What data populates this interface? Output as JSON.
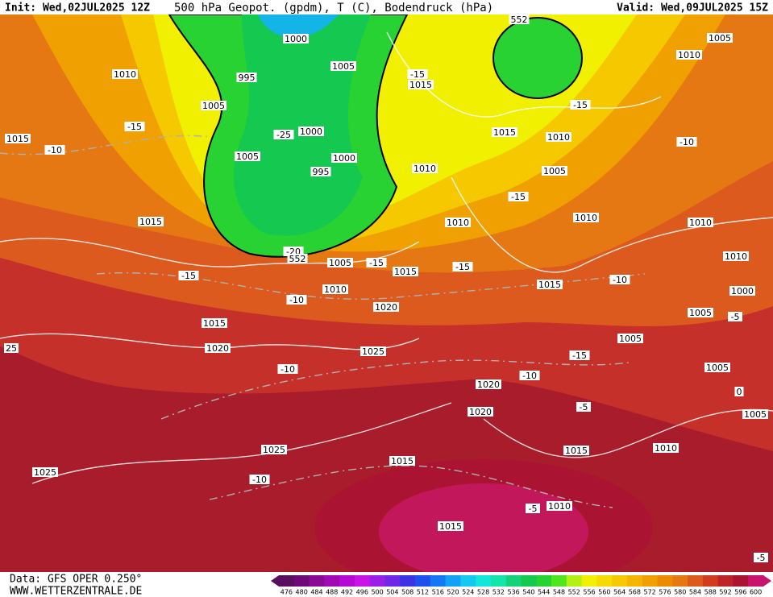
{
  "header": {
    "init": "Init: Wed,02JUL2025 12Z",
    "title": "500 hPa Geopot. (gpdm), T (C), Bodendruck (hPa)",
    "valid": "Valid: Wed,09JUL2025 15Z"
  },
  "map": {
    "labels": [
      1000,
      1005,
      995,
      1010,
      1005,
      -15,
      1015,
      -10,
      -25,
      1000,
      1005,
      995,
      1000,
      -15,
      1015,
      552,
      1005,
      1010,
      -15,
      1015,
      1010,
      -10,
      1010,
      1005,
      -15,
      1015,
      1010,
      1010,
      1010,
      -20,
      552,
      1005,
      -15,
      -15,
      1015,
      -15,
      1010,
      -10,
      1020,
      1015,
      -10,
      1010,
      1000,
      1015,
      1005,
      -5,
      1020,
      25,
      1025,
      1005,
      -15,
      -10,
      -10,
      1005,
      1020,
      0,
      -5,
      1020,
      1005,
      1025,
      1015,
      1015,
      1010,
      1025,
      -10,
      -5,
      1010,
      1015,
      -5
    ]
  },
  "legend": {
    "values": [
      476,
      480,
      484,
      488,
      492,
      496,
      500,
      504,
      508,
      512,
      516,
      520,
      524,
      528,
      532,
      536,
      540,
      544,
      548,
      552,
      556,
      560,
      564,
      568,
      572,
      576,
      580,
      584,
      588,
      592,
      596,
      600
    ],
    "colors": [
      "#5a0e5e",
      "#6e0a78",
      "#8a0a96",
      "#a00ab4",
      "#b40ad2",
      "#c814e6",
      "#9b1ee6",
      "#6e28e6",
      "#3c32e6",
      "#1e50f0",
      "#1478f5",
      "#14a0f5",
      "#14c8f0",
      "#14e6dc",
      "#14e6aa",
      "#14d278",
      "#14c850",
      "#28d232",
      "#50e61e",
      "#b4f014",
      "#f0f000",
      "#f5dc00",
      "#f5c800",
      "#f5b400",
      "#f0a000",
      "#eb8c00",
      "#e67814",
      "#dc5a1e",
      "#d23c1e",
      "#be2328",
      "#aa1432",
      "#c8146e"
    ]
  },
  "footer": {
    "data": "Data: GFS OPER 0.250°",
    "site": "WWW.WETTERZENTRALE.DE"
  }
}
